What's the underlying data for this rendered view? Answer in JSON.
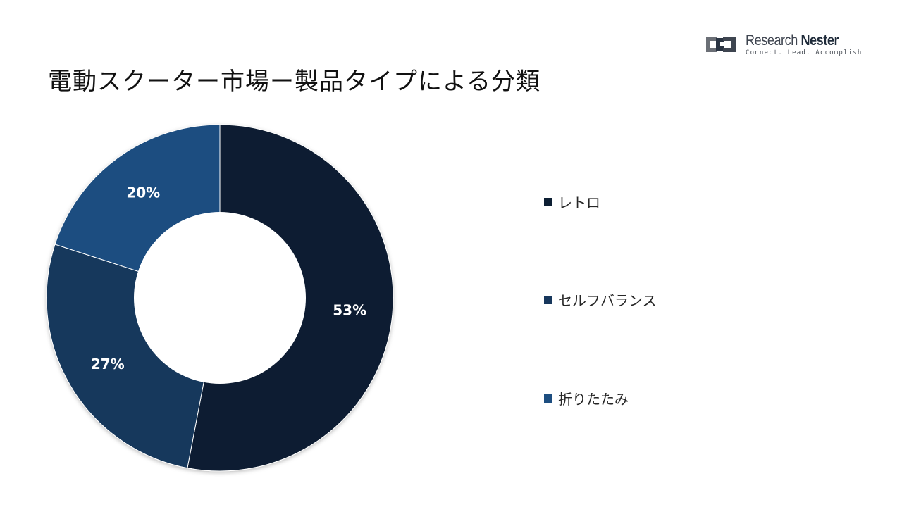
{
  "title": "電動スクーター市場ー製品タイプによる分類",
  "logo": {
    "name_regular": "Research ",
    "name_bold": "Nester",
    "tagline": "Connect. Lead. Accomplish"
  },
  "chart_data": {
    "type": "pie",
    "donut": true,
    "categories": [
      "レトロ",
      "セルフバランス",
      "折りたたみ"
    ],
    "values": [
      53,
      27,
      20
    ],
    "data_labels": [
      "53%",
      "27%",
      "20%"
    ],
    "colors": [
      "#0d1f33",
      "#17375c",
      "#1d4e80"
    ],
    "legend_position": "right"
  }
}
